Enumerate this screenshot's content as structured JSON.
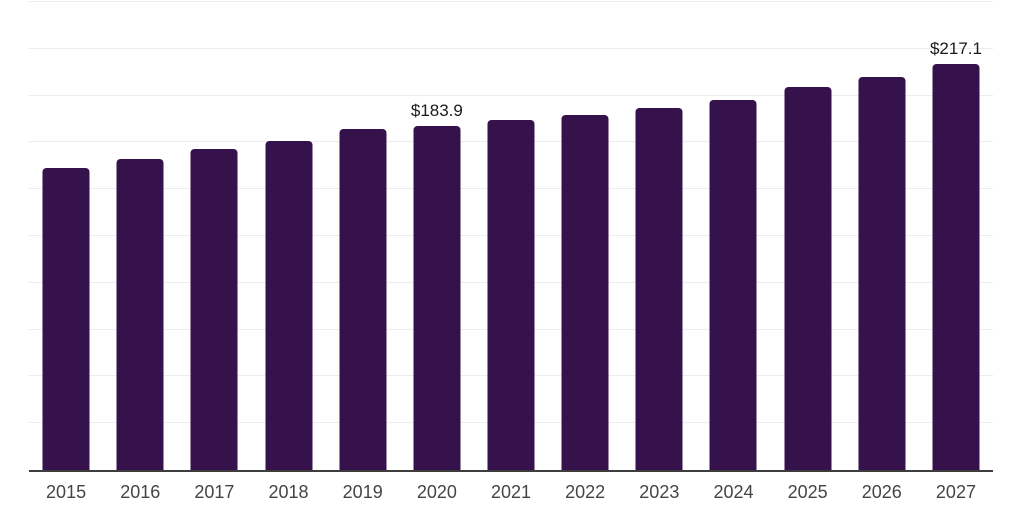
{
  "chart_data": {
    "type": "bar",
    "title": "",
    "xlabel": "",
    "ylabel": "",
    "categories": [
      "2015",
      "2016",
      "2017",
      "2018",
      "2019",
      "2020",
      "2021",
      "2022",
      "2023",
      "2024",
      "2025",
      "2026",
      "2027"
    ],
    "values": [
      161.5,
      166.0,
      171.3,
      176.0,
      182.3,
      183.9,
      187.0,
      189.6,
      193.2,
      197.6,
      204.4,
      210.1,
      217.1
    ],
    "annotations": [
      {
        "category": "2020",
        "text": "$183.9"
      },
      {
        "category": "2027",
        "text": "$217.1"
      }
    ],
    "ylim": [
      0,
      250
    ],
    "ytick_step": 25,
    "grid": "horizontal",
    "y_axis_tick_labels_visible": false,
    "legend": "none",
    "colors": {
      "bar": "#35124b",
      "gridline": "#ececec",
      "axis_line": "#3d3d3d",
      "x_label_text": "#454545",
      "annotation_text": "#1a1a1a",
      "background": "#ffffff"
    }
  }
}
